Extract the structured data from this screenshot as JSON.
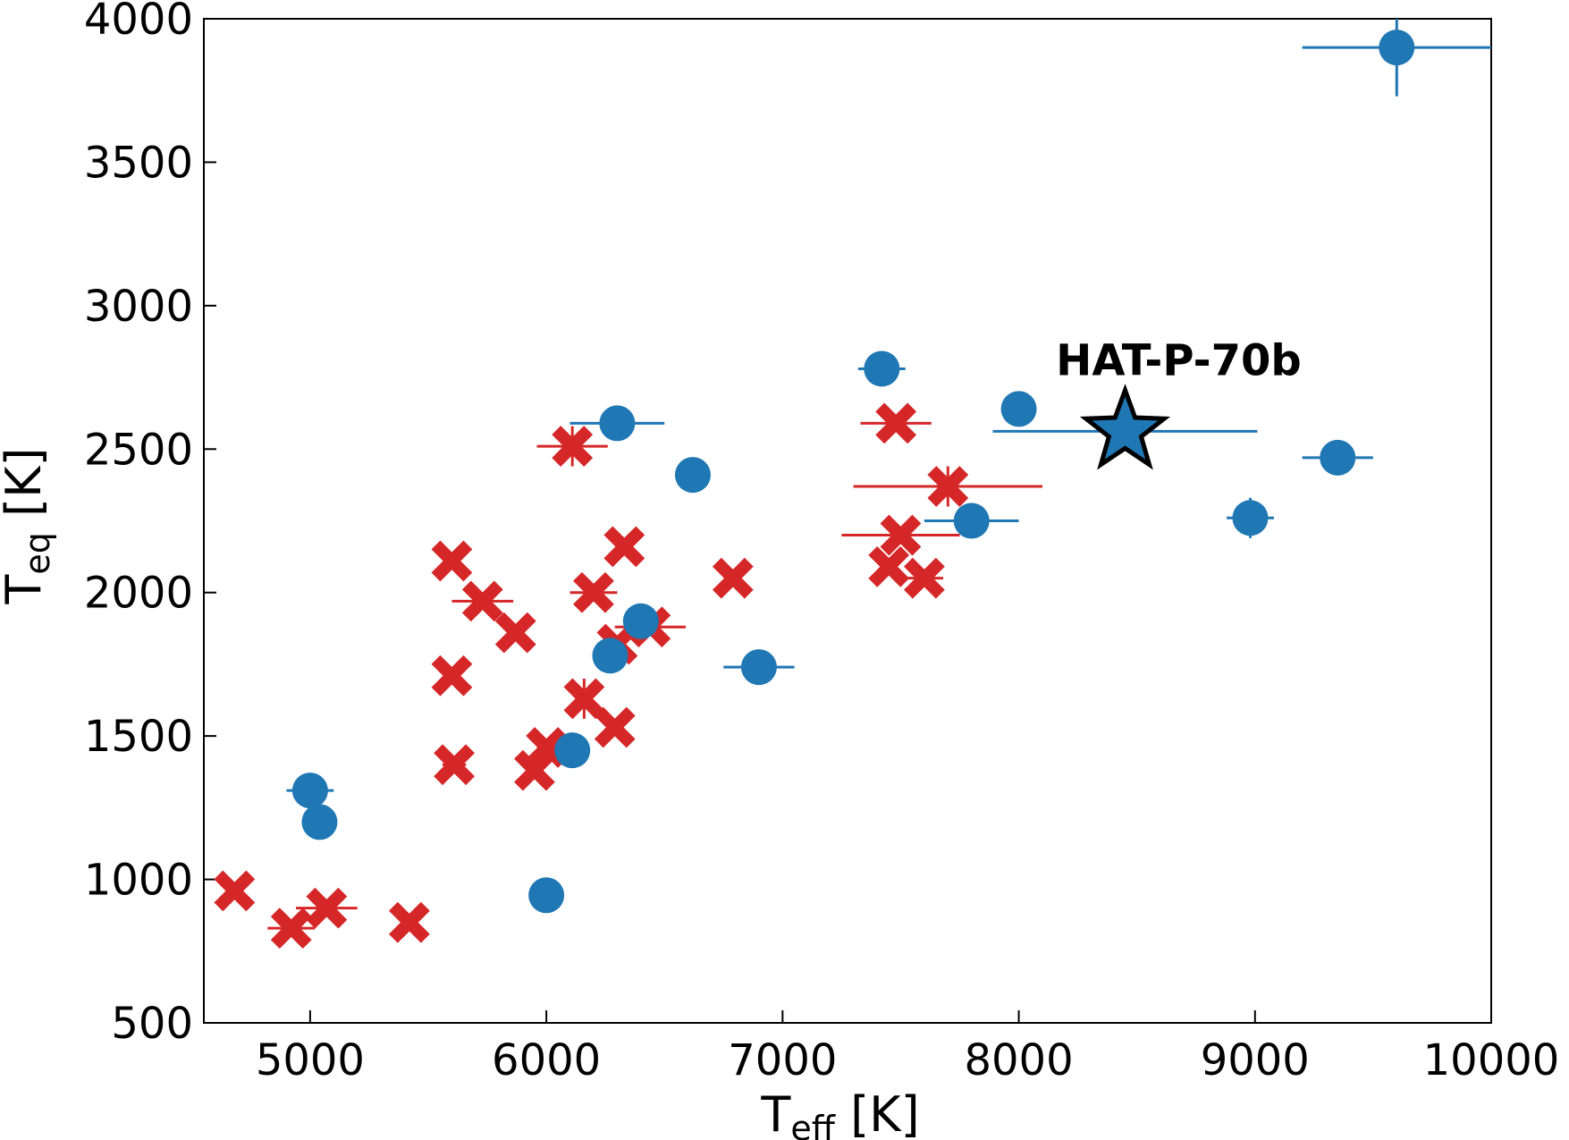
{
  "chart_data": {
    "type": "scatter",
    "title": "",
    "xlabel_main": "T",
    "xlabel_sub": "eff",
    "xlabel_unit": " [K]",
    "ylabel_main": "T",
    "ylabel_sub": "eq",
    "ylabel_unit": " [K]",
    "xlim": [
      4550,
      10000
    ],
    "ylim": [
      500,
      4000
    ],
    "xticks": [
      5000,
      6000,
      7000,
      8000,
      9000,
      10000
    ],
    "yticks": [
      500,
      1000,
      1500,
      2000,
      2500,
      3000,
      3500,
      4000
    ],
    "grid": false,
    "legend": "none",
    "annotation": {
      "text": "HAT-P-70b",
      "x": 8450,
      "y": 2562
    },
    "series": [
      {
        "marker": "circle",
        "color": "#1f77b4",
        "points": [
          {
            "x": 9600,
            "y": 3900,
            "xerr": 400,
            "yerr": 170
          },
          {
            "x": 7420,
            "y": 2780,
            "xerr": 100,
            "yerr": 0
          },
          {
            "x": 8000,
            "y": 2640,
            "xerr": 50,
            "yerr": 0
          },
          {
            "x": 6300,
            "y": 2590,
            "xerr": 200,
            "yerr": 0
          },
          {
            "x": 9350,
            "y": 2470,
            "xerr": 150,
            "yerr": 0
          },
          {
            "x": 6620,
            "y": 2410,
            "xerr": 0,
            "yerr": 0
          },
          {
            "x": 8980,
            "y": 2260,
            "xerr": 100,
            "yerr": 70
          },
          {
            "x": 7800,
            "y": 2250,
            "xerr": 200,
            "yerr": 0
          },
          {
            "x": 6400,
            "y": 1900,
            "xerr": 0,
            "yerr": 0
          },
          {
            "x": 6270,
            "y": 1780,
            "xerr": 0,
            "yerr": 0
          },
          {
            "x": 6900,
            "y": 1740,
            "xerr": 150,
            "yerr": 0
          },
          {
            "x": 6110,
            "y": 1450,
            "xerr": 0,
            "yerr": 0
          },
          {
            "x": 5000,
            "y": 1310,
            "xerr": 100,
            "yerr": 0
          },
          {
            "x": 5040,
            "y": 1200,
            "xerr": 0,
            "yerr": 0
          },
          {
            "x": 6000,
            "y": 945,
            "xerr": 0,
            "yerr": 0
          }
        ]
      },
      {
        "marker": "x",
        "color": "#d62728",
        "points": [
          {
            "x": 6110,
            "y": 2510,
            "xerr": 150,
            "yerr": 70
          },
          {
            "x": 7480,
            "y": 2590,
            "xerr": 150,
            "yerr": 0
          },
          {
            "x": 7700,
            "y": 2370,
            "xerr": 400,
            "yerr": 70
          },
          {
            "x": 7500,
            "y": 2200,
            "xerr": 250,
            "yerr": 0
          },
          {
            "x": 7450,
            "y": 2090,
            "xerr": 0,
            "yerr": 0
          },
          {
            "x": 7600,
            "y": 2050,
            "xerr": 80,
            "yerr": 0
          },
          {
            "x": 6330,
            "y": 2160,
            "xerr": 0,
            "yerr": 0
          },
          {
            "x": 6790,
            "y": 2050,
            "xerr": 0,
            "yerr": 0
          },
          {
            "x": 6200,
            "y": 2000,
            "xerr": 100,
            "yerr": 0
          },
          {
            "x": 5600,
            "y": 2110,
            "xerr": 0,
            "yerr": 0
          },
          {
            "x": 5730,
            "y": 1970,
            "xerr": 130,
            "yerr": 0
          },
          {
            "x": 5870,
            "y": 1860,
            "xerr": 0,
            "yerr": 0
          },
          {
            "x": 6440,
            "y": 1880,
            "xerr": 150,
            "yerr": 0
          },
          {
            "x": 6300,
            "y": 1820,
            "xerr": 0,
            "yerr": 0
          },
          {
            "x": 5600,
            "y": 1710,
            "xerr": 0,
            "yerr": 0
          },
          {
            "x": 6160,
            "y": 1630,
            "xerr": 0,
            "yerr": 70
          },
          {
            "x": 6290,
            "y": 1530,
            "xerr": 0,
            "yerr": 0
          },
          {
            "x": 6000,
            "y": 1460,
            "xerr": 0,
            "yerr": 0
          },
          {
            "x": 5950,
            "y": 1380,
            "xerr": 0,
            "yerr": 0
          },
          {
            "x": 5610,
            "y": 1400,
            "xerr": 50,
            "yerr": 0
          },
          {
            "x": 4680,
            "y": 960,
            "xerr": 0,
            "yerr": 0
          },
          {
            "x": 4920,
            "y": 830,
            "xerr": 100,
            "yerr": 0
          },
          {
            "x": 5070,
            "y": 900,
            "xerr": 130,
            "yerr": 0
          },
          {
            "x": 5420,
            "y": 850,
            "xerr": 0,
            "yerr": 0
          }
        ]
      },
      {
        "marker": "star",
        "color": "#1f77b4",
        "points": [
          {
            "x": 8450,
            "y": 2562,
            "xerr": 560,
            "yerr": 0
          }
        ]
      }
    ]
  }
}
